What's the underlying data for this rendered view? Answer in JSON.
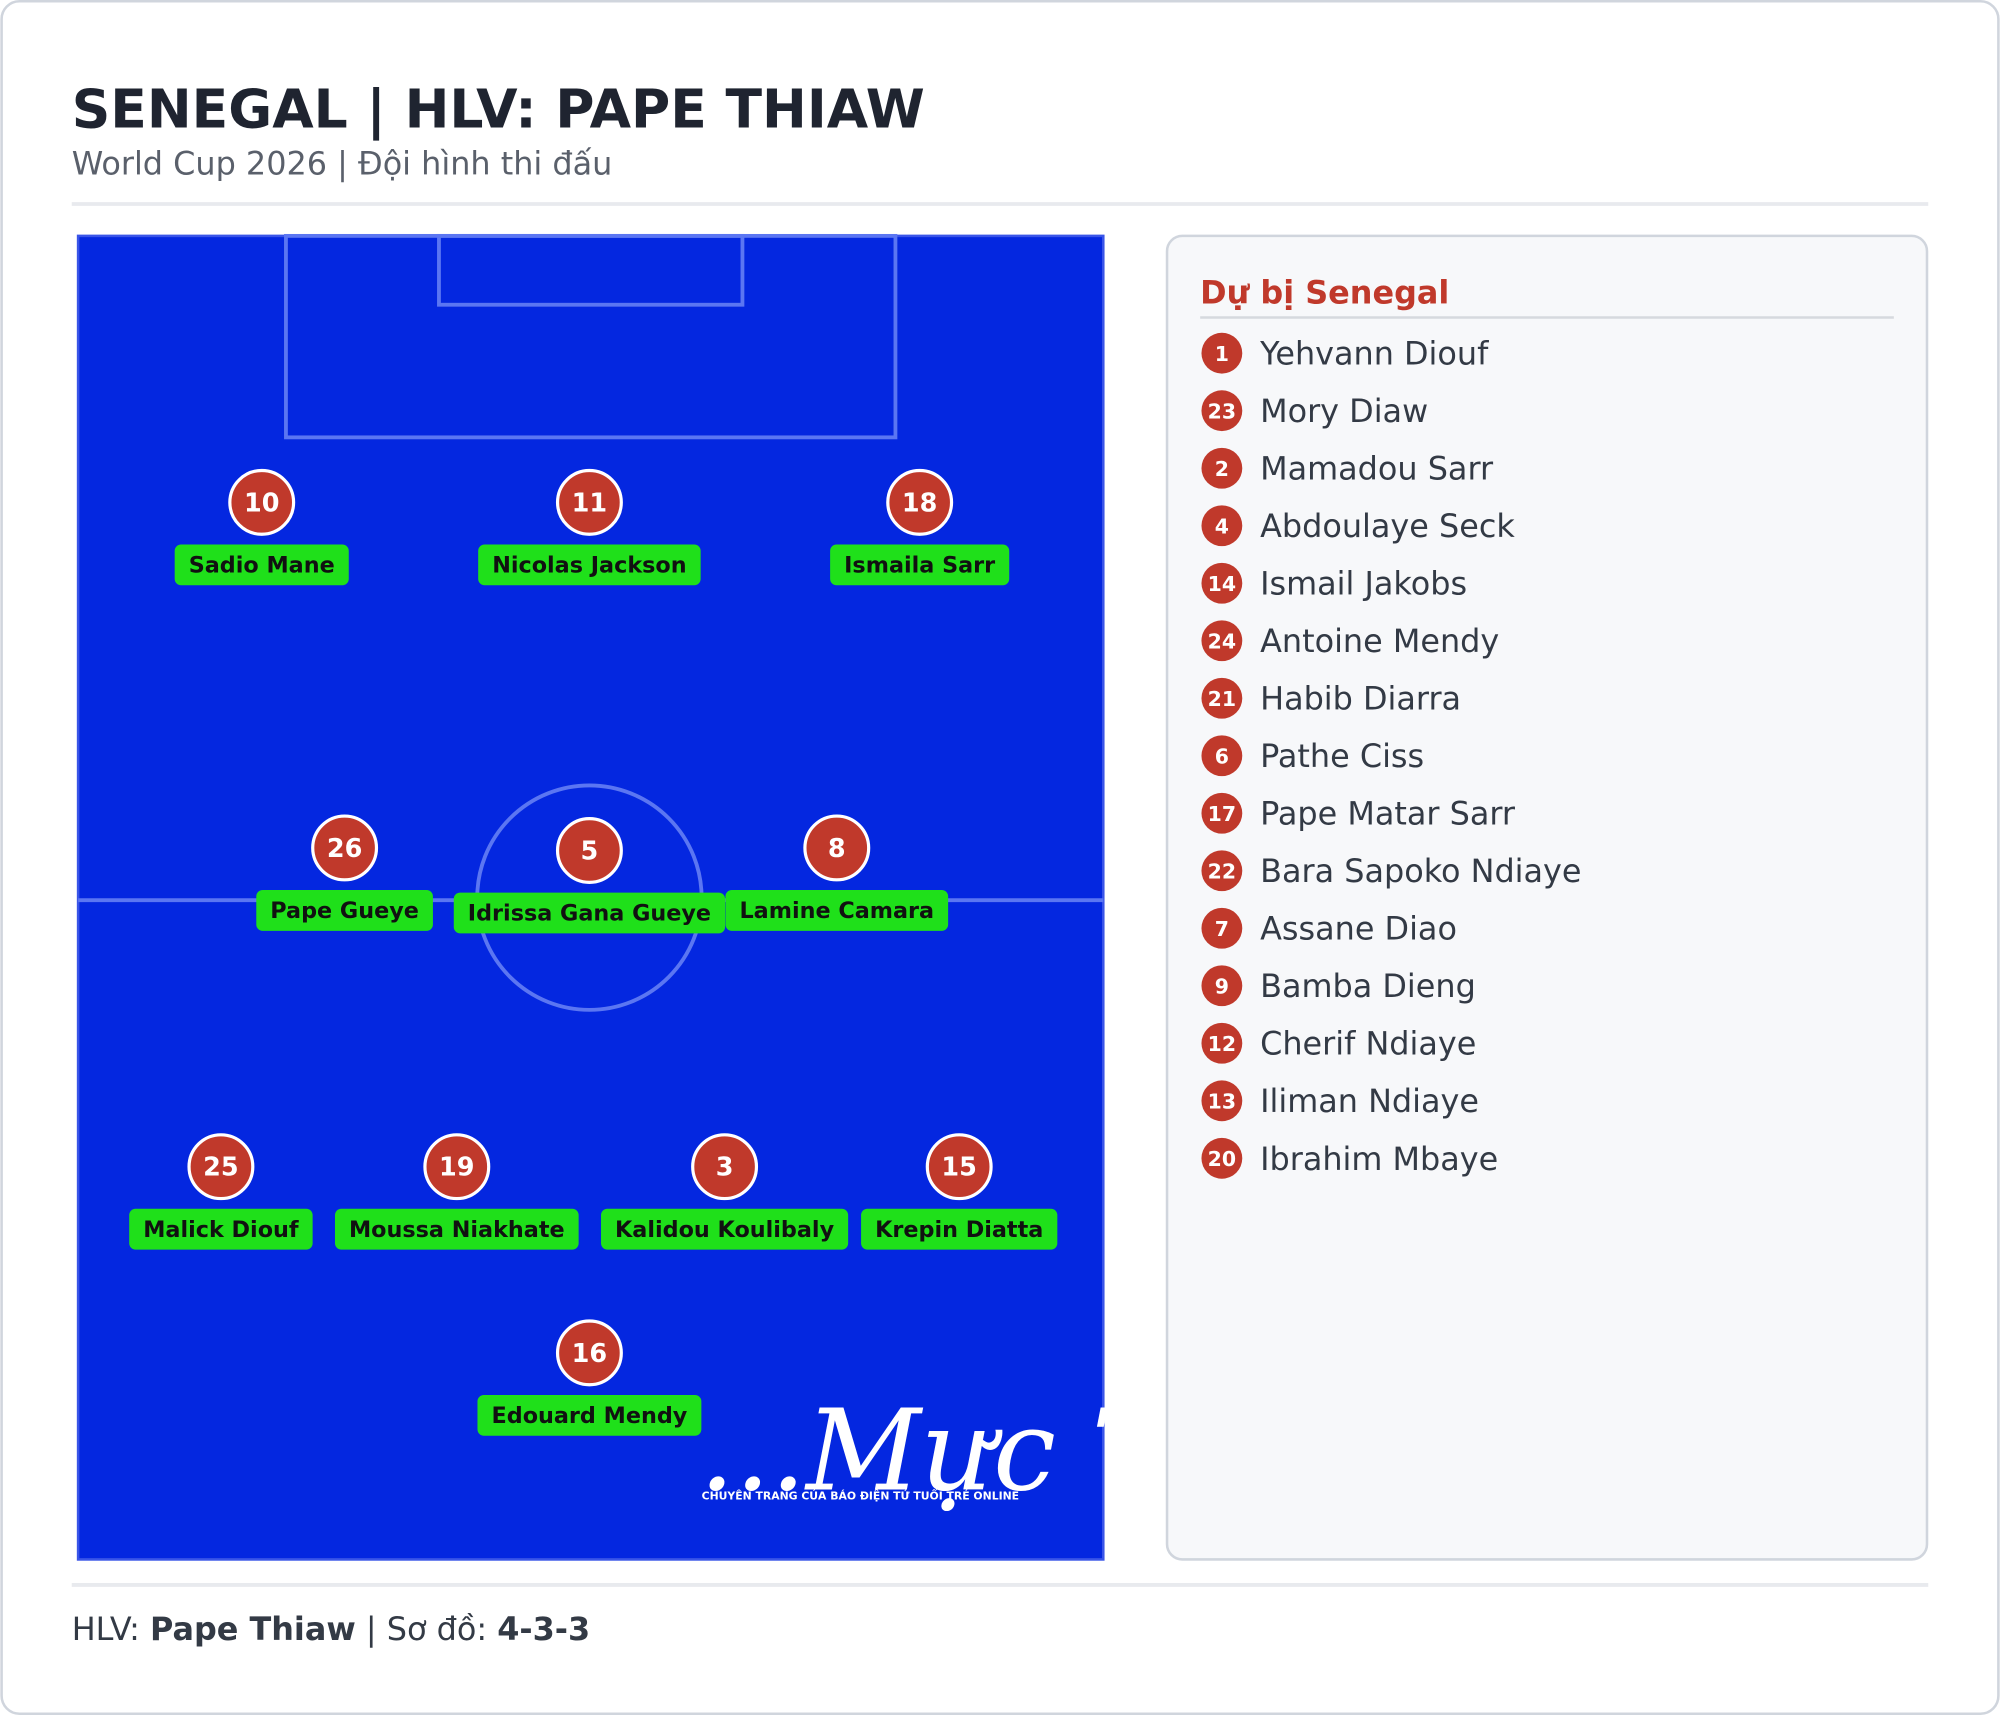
{
  "header": {
    "title": "SENEGAL | HLV: PAPE THIAW",
    "subtitle": "World Cup 2026 | Đội hình thi đấu"
  },
  "pitch": {
    "players": [
      {
        "number": 10,
        "name": "Sadio Mane"
      },
      {
        "number": 11,
        "name": "Nicolas Jackson"
      },
      {
        "number": 18,
        "name": "Ismaila Sarr"
      },
      {
        "number": 26,
        "name": "Pape Gueye"
      },
      {
        "number": 5,
        "name": "Idrissa Gana Gueye"
      },
      {
        "number": 8,
        "name": "Lamine Camara"
      },
      {
        "number": 25,
        "name": "Malick Diouf"
      },
      {
        "number": 19,
        "name": "Moussa Niakhate"
      },
      {
        "number": 3,
        "name": "Kalidou Koulibaly"
      },
      {
        "number": 15,
        "name": "Krepin Diatta"
      },
      {
        "number": 16,
        "name": "Edouard Mendy"
      }
    ]
  },
  "watermark": {
    "title": "...Mực Tím",
    "tagline": "CHUYÊN TRANG CỦA BÁO ĐIỆN TỬ TUỔI TRẺ ONLINE"
  },
  "bench": {
    "title": "Dự bị Senegal",
    "players": [
      {
        "number": 1,
        "name": "Yehvann Diouf"
      },
      {
        "number": 23,
        "name": "Mory Diaw"
      },
      {
        "number": 2,
        "name": "Mamadou Sarr"
      },
      {
        "number": 4,
        "name": "Abdoulaye Seck"
      },
      {
        "number": 14,
        "name": "Ismail Jakobs"
      },
      {
        "number": 24,
        "name": "Antoine Mendy"
      },
      {
        "number": 21,
        "name": "Habib Diarra"
      },
      {
        "number": 6,
        "name": "Pathe Ciss"
      },
      {
        "number": 17,
        "name": "Pape Matar Sarr"
      },
      {
        "number": 22,
        "name": "Bara Sapoko Ndiaye"
      },
      {
        "number": 7,
        "name": "Assane Diao"
      },
      {
        "number": 9,
        "name": "Bamba Dieng"
      },
      {
        "number": 12,
        "name": "Cherif Ndiaye"
      },
      {
        "number": 13,
        "name": "Iliman Ndiaye"
      },
      {
        "number": 20,
        "name": "Ibrahim Mbaye"
      }
    ]
  },
  "footer": {
    "coach_label": "HLV:",
    "coach": "Pape Thiaw",
    "formation_label": "| Sơ đồ:",
    "formation": "4-3-3"
  }
}
